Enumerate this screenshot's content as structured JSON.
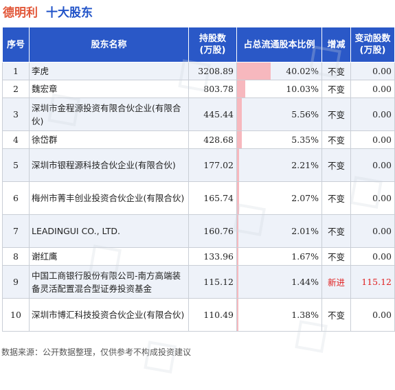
{
  "header": {
    "company": "德明利",
    "title": "十大股东"
  },
  "columns": {
    "rank": "序号",
    "name": "股东名称",
    "shares_line1": "持股数",
    "shares_line2": "(万股)",
    "ratio": "占总流通股本比例",
    "change": "增减",
    "delta_line1": "变动股数",
    "delta_line2": "(万股)"
  },
  "rows": [
    {
      "rank": "1",
      "name": "李虎",
      "shares": "3208.89",
      "ratio": "40.02%",
      "ratio_value": 40.02,
      "change": "不变",
      "delta": "0.00"
    },
    {
      "rank": "2",
      "name": "魏宏章",
      "shares": "803.78",
      "ratio": "10.03%",
      "ratio_value": 10.03,
      "change": "不变",
      "delta": "0.00"
    },
    {
      "rank": "3",
      "name": "深圳市金程源投资有限合伙企业(有限合伙)",
      "shares": "445.44",
      "ratio": "5.56%",
      "ratio_value": 5.56,
      "change": "不变",
      "delta": "0.00"
    },
    {
      "rank": "4",
      "name": "徐岱群",
      "shares": "428.68",
      "ratio": "5.35%",
      "ratio_value": 5.35,
      "change": "不变",
      "delta": "0.00"
    },
    {
      "rank": "5",
      "name": "深圳市银程源科技合伙企业(有限合伙)",
      "shares": "177.02",
      "ratio": "2.21%",
      "ratio_value": 2.21,
      "change": "不变",
      "delta": "0.00"
    },
    {
      "rank": "6",
      "name": "梅州市菁丰创业投资合伙企业(有限合伙)",
      "shares": "165.74",
      "ratio": "2.07%",
      "ratio_value": 2.07,
      "change": "不变",
      "delta": "0.00"
    },
    {
      "rank": "7",
      "name": "LEADINGUI CO., LTD.",
      "shares": "160.76",
      "ratio": "2.01%",
      "ratio_value": 2.01,
      "change": "不变",
      "delta": "0.00"
    },
    {
      "rank": "8",
      "name": "谢红鹰",
      "shares": "133.96",
      "ratio": "1.67%",
      "ratio_value": 1.67,
      "change": "不变",
      "delta": "0.00"
    },
    {
      "rank": "9",
      "name": "中国工商银行股份有限公司-南方高端装备灵活配置混合型证券投资基金",
      "shares": "115.12",
      "ratio": "1.44%",
      "ratio_value": 1.44,
      "change": "新进",
      "delta": "115.12"
    },
    {
      "rank": "10",
      "name": "深圳市博汇科技投资合伙企业(有限合伙)",
      "shares": "110.49",
      "ratio": "1.38%",
      "ratio_value": 1.38,
      "change": "不变",
      "delta": "0.00"
    }
  ],
  "colors": {
    "header_bg": "#2a58c7",
    "bar": "#f7b8be",
    "highlight": "#e02020",
    "company": "#e2583a",
    "title": "#2153c8"
  },
  "footer": "数据来源：公开数据整理，仅供参考不构成投资建议"
}
